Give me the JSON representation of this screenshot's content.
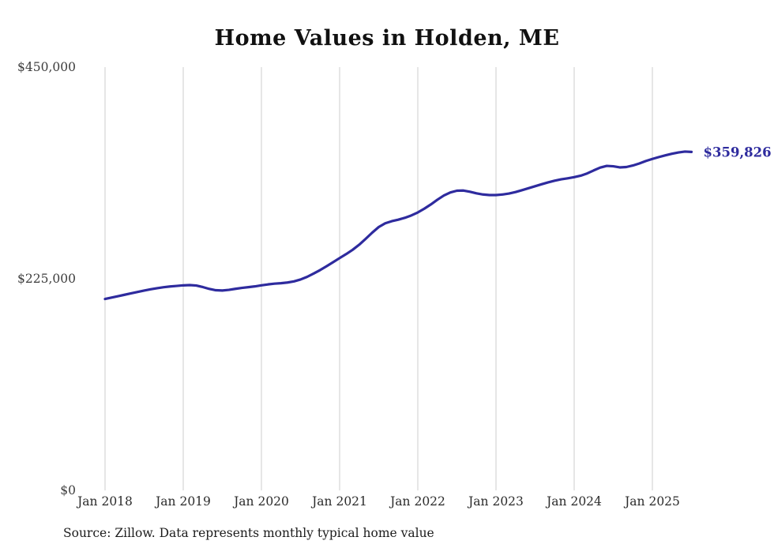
{
  "title": "Home Values in Holden, ME",
  "source_note": "Source: Zillow. Data represents monthly typical home value",
  "chart_data": {
    "type": "line",
    "title": "Home Values in Holden, ME",
    "series_name": "Monthly typical home value",
    "x_start": "Jan 2018",
    "x_end": "Jul 2025",
    "x_tick_labels": [
      "Jan 2018",
      "Jan 2019",
      "Jan 2020",
      "Jan 2021",
      "Jan 2022",
      "Jan 2023",
      "Jan 2024",
      "Jan 2025"
    ],
    "y_ticks": [
      {
        "value": 0,
        "label": "$0"
      },
      {
        "value": 225000,
        "label": "$225,000"
      },
      {
        "value": 450000,
        "label": "$450,000"
      }
    ],
    "ylim": [
      0,
      450000
    ],
    "end_label": "$359,826",
    "end_value": 359826,
    "line_color": "#2e2b9e",
    "grid_color": "#cccccc",
    "grid": "vertical-only",
    "legend": "none",
    "monthly_values": [
      203500,
      205000,
      206500,
      208000,
      209500,
      211000,
      212500,
      213800,
      215000,
      216000,
      216800,
      217400,
      218000,
      218300,
      217800,
      216200,
      214200,
      212800,
      212500,
      213200,
      214300,
      215300,
      216100,
      216900,
      218000,
      219000,
      219800,
      220300,
      221000,
      222200,
      224200,
      227000,
      230500,
      234200,
      238300,
      242600,
      247000,
      251200,
      255800,
      261200,
      267500,
      274000,
      280000,
      284000,
      286200,
      287800,
      289800,
      292300,
      295500,
      299500,
      304000,
      309000,
      313500,
      316800,
      318600,
      318800,
      317500,
      315800,
      314600,
      314000,
      314000,
      314600,
      315600,
      317200,
      319200,
      321300,
      323400,
      325500,
      327500,
      329300,
      330700,
      331800,
      333000,
      334600,
      337000,
      340200,
      343200,
      345000,
      344600,
      343400,
      343800,
      345400,
      347600,
      350200,
      352400,
      354400,
      356200,
      357900,
      359300,
      360200,
      359826
    ]
  }
}
